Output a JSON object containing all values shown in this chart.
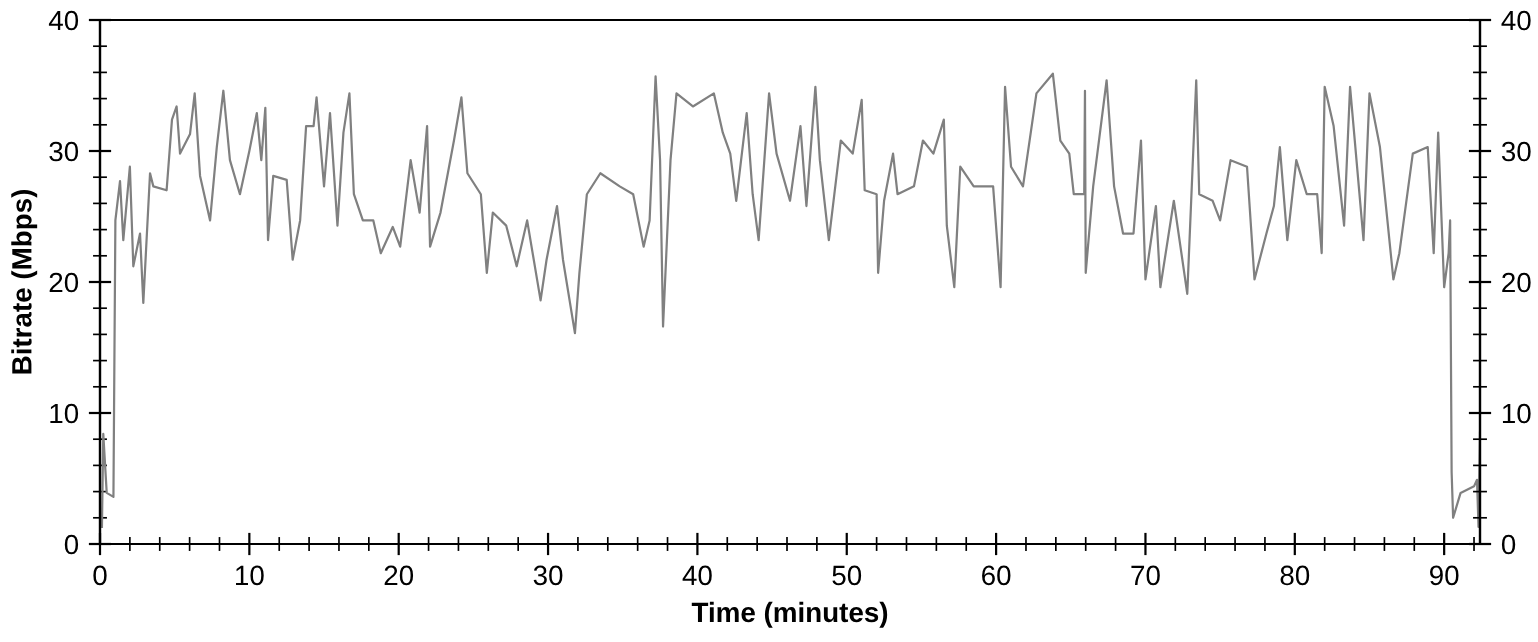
{
  "chart_data": {
    "type": "line",
    "xlabel": "Time (minutes)",
    "ylabel": "Bitrate (Mbps)",
    "xlim": [
      0,
      92.4
    ],
    "xticks": [
      0,
      10,
      20,
      30,
      40,
      50,
      60,
      70,
      80,
      90
    ],
    "ylim": [
      0,
      40
    ],
    "yticks": [
      0,
      10,
      20,
      30,
      40
    ],
    "y2lim": [
      0,
      40
    ],
    "y2ticks": [
      0,
      10,
      20,
      30,
      40
    ],
    "grid": false,
    "marker": "none",
    "line_style": "solid",
    "series": [
      {
        "color": "#808080",
        "x": [
          0.13,
          0.22,
          0.45,
          0.9,
          1.03,
          1.34,
          1.56,
          2.0,
          2.23,
          2.68,
          2.9,
          3.35,
          3.57,
          4.46,
          4.82,
          5.13,
          5.36,
          6.03,
          6.34,
          6.7,
          7.37,
          7.82,
          8.26,
          8.7,
          9.37,
          10.0,
          10.5,
          10.8,
          11.07,
          11.25,
          11.6,
          12.5,
          12.9,
          13.4,
          13.8,
          14.3,
          14.5,
          15.0,
          15.4,
          15.9,
          16.3,
          16.7,
          17.0,
          17.6,
          18.3,
          18.8,
          19.6,
          20.1,
          20.8,
          21.4,
          21.9,
          22.1,
          22.8,
          23.7,
          24.2,
          24.6,
          25.5,
          25.9,
          26.3,
          27.2,
          27.9,
          28.6,
          29.5,
          29.9,
          30.6,
          31.0,
          31.8,
          32.1,
          32.6,
          33.5,
          34.8,
          35.7,
          36.4,
          36.8,
          37.2,
          37.5,
          37.7,
          38.2,
          38.6,
          39.7,
          41.1,
          41.7,
          42.2,
          42.6,
          43.3,
          43.7,
          44.1,
          44.8,
          45.3,
          46.2,
          46.9,
          47.3,
          47.9,
          48.2,
          48.8,
          49.6,
          50.4,
          51.0,
          51.2,
          52.0,
          52.1,
          52.5,
          53.1,
          53.4,
          54.5,
          55.1,
          55.8,
          56.5,
          56.7,
          57.2,
          57.6,
          58.5,
          59.8,
          60.3,
          60.6,
          61.0,
          61.8,
          62.7,
          63.8,
          64.3,
          64.9,
          65.2,
          65.9,
          65.95,
          66.0,
          66.5,
          67.4,
          67.9,
          68.5,
          69.2,
          69.7,
          70.0,
          70.7,
          71.0,
          71.9,
          72.8,
          73.4,
          73.6,
          74.5,
          75.0,
          75.7,
          76.8,
          77.3,
          78.1,
          78.6,
          79.0,
          79.5,
          80.1,
          80.8,
          81.5,
          81.8,
          82.0,
          82.6,
          83.3,
          83.7,
          84.6,
          85.0,
          85.7,
          86.2,
          86.6,
          87.0,
          87.9,
          88.9,
          89.3,
          89.6,
          90.0,
          90.3,
          90.4,
          90.5,
          90.6,
          91.1,
          92.0,
          92.2,
          92.3,
          92.4
        ],
        "values": [
          1.3,
          8.4,
          3.9,
          3.6,
          24.7,
          27.7,
          23.2,
          28.8,
          21.2,
          23.7,
          18.4,
          28.3,
          27.3,
          27.0,
          32.4,
          33.4,
          29.8,
          31.3,
          34.4,
          28.1,
          24.7,
          30.3,
          34.6,
          29.3,
          26.7,
          30.0,
          32.9,
          29.3,
          33.3,
          23.2,
          28.1,
          27.8,
          21.7,
          24.7,
          31.9,
          31.9,
          34.1,
          27.3,
          32.9,
          24.3,
          31.4,
          34.4,
          26.7,
          24.7,
          24.7,
          22.2,
          24.2,
          22.7,
          29.3,
          25.3,
          31.9,
          22.7,
          25.3,
          30.8,
          34.1,
          28.3,
          26.7,
          20.7,
          25.3,
          24.3,
          21.2,
          24.7,
          18.6,
          21.7,
          25.8,
          21.7,
          16.1,
          20.7,
          26.7,
          28.3,
          27.3,
          26.7,
          22.7,
          24.7,
          35.7,
          29.3,
          16.6,
          29.3,
          34.4,
          33.4,
          34.4,
          31.4,
          29.8,
          26.2,
          32.9,
          26.7,
          23.2,
          34.4,
          29.8,
          26.2,
          31.9,
          25.8,
          34.9,
          29.3,
          23.2,
          30.8,
          29.8,
          33.9,
          27.0,
          26.7,
          20.7,
          26.2,
          29.8,
          26.7,
          27.3,
          30.8,
          29.8,
          32.4,
          24.3,
          19.6,
          28.8,
          27.3,
          27.3,
          19.6,
          34.9,
          28.8,
          27.3,
          34.4,
          35.9,
          30.8,
          29.8,
          26.7,
          26.7,
          34.6,
          20.7,
          27.3,
          35.4,
          27.3,
          23.7,
          23.7,
          30.8,
          20.2,
          25.8,
          19.6,
          26.2,
          19.1,
          35.4,
          26.7,
          26.2,
          24.7,
          29.3,
          28.8,
          20.2,
          23.7,
          25.8,
          30.3,
          23.2,
          29.3,
          26.7,
          26.7,
          22.2,
          34.9,
          31.9,
          24.3,
          34.9,
          23.2,
          34.4,
          30.3,
          24.7,
          20.2,
          22.2,
          29.8,
          30.3,
          22.2,
          31.4,
          19.6,
          22.2,
          24.7,
          5.5,
          2.0,
          3.9,
          4.4,
          4.9,
          1.3,
          8.5
        ]
      }
    ]
  }
}
